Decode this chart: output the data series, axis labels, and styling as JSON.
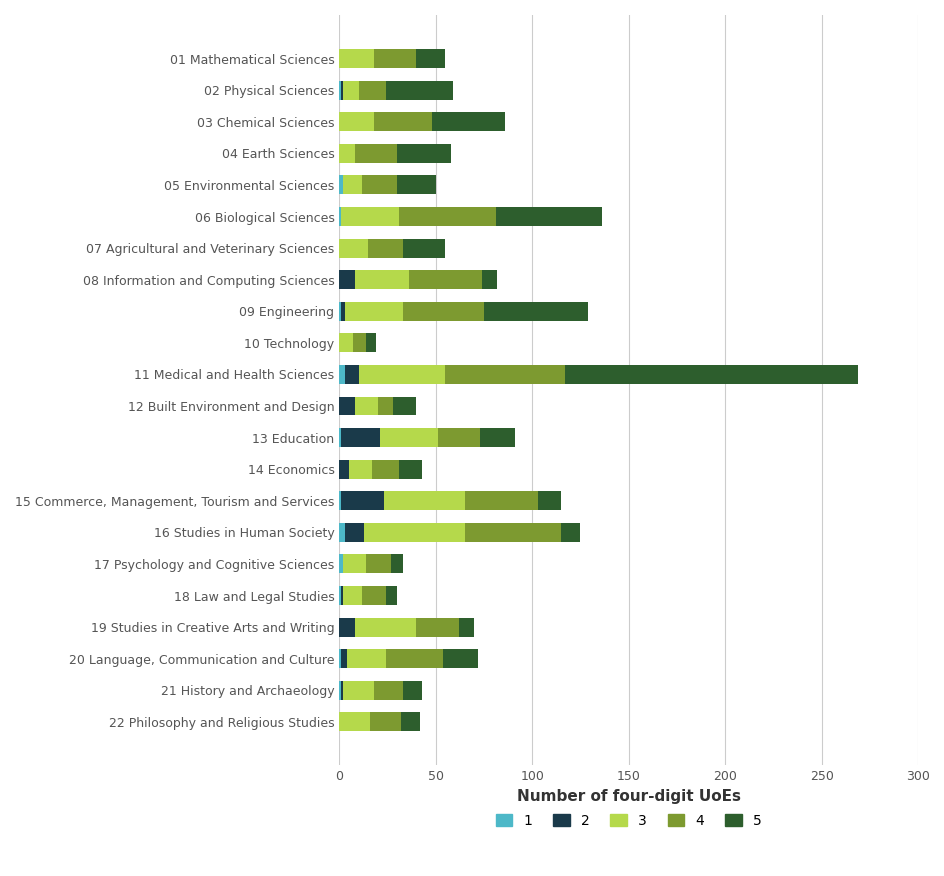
{
  "categories": [
    "01 Mathematical Sciences",
    "02 Physical Sciences",
    "03 Chemical Sciences",
    "04 Earth Sciences",
    "05 Environmental Sciences",
    "06 Biological Sciences",
    "07 Agricultural and Veterinary Sciences",
    "08 Information and Computing Sciences",
    "09 Engineering",
    "10 Technology",
    "11 Medical and Health Sciences",
    "12 Built Environment and Design",
    "13 Education",
    "14 Economics",
    "15 Commerce, Management, Tourism and Services",
    "16 Studies in Human Society",
    "17 Psychology and Cognitive Sciences",
    "18 Law and Legal Studies",
    "19 Studies in Creative Arts and Writing",
    "20 Language, Communication and Culture",
    "21 History and Archaeology",
    "22 Philosophy and Religious Studies"
  ],
  "rating1": [
    0,
    1,
    0,
    0,
    2,
    1,
    0,
    0,
    1,
    0,
    3,
    0,
    1,
    0,
    1,
    3,
    2,
    1,
    0,
    1,
    1,
    0
  ],
  "rating2": [
    0,
    1,
    0,
    0,
    0,
    0,
    0,
    8,
    2,
    0,
    7,
    8,
    20,
    5,
    22,
    10,
    0,
    1,
    8,
    3,
    1,
    0
  ],
  "rating3": [
    18,
    8,
    18,
    8,
    10,
    30,
    15,
    28,
    30,
    7,
    45,
    12,
    30,
    12,
    42,
    52,
    12,
    10,
    32,
    20,
    16,
    16
  ],
  "rating4": [
    22,
    14,
    30,
    22,
    18,
    50,
    18,
    38,
    42,
    7,
    62,
    8,
    22,
    14,
    38,
    50,
    13,
    12,
    22,
    30,
    15,
    16
  ],
  "rating5": [
    15,
    35,
    38,
    28,
    20,
    55,
    22,
    8,
    54,
    5,
    152,
    12,
    18,
    12,
    12,
    10,
    6,
    6,
    8,
    18,
    10,
    10
  ],
  "colors": {
    "1": "#4db8c8",
    "2": "#1a3a4a",
    "3": "#b5d94b",
    "4": "#7d9a30",
    "5": "#2d5e2d"
  },
  "xlabel": "Number of four-digit UoEs",
  "xlim": [
    0,
    300
  ],
  "xticks": [
    0,
    50,
    100,
    150,
    200,
    250,
    300
  ],
  "background_color": "#ffffff",
  "grid_color": "#cccccc",
  "bar_height": 0.6,
  "legend_labels": [
    "1",
    "2",
    "3",
    "4",
    "5"
  ],
  "figsize": [
    9.45,
    8.76
  ],
  "dpi": 100,
  "ylabel_fontsize": 9,
  "xlabel_fontsize": 11
}
